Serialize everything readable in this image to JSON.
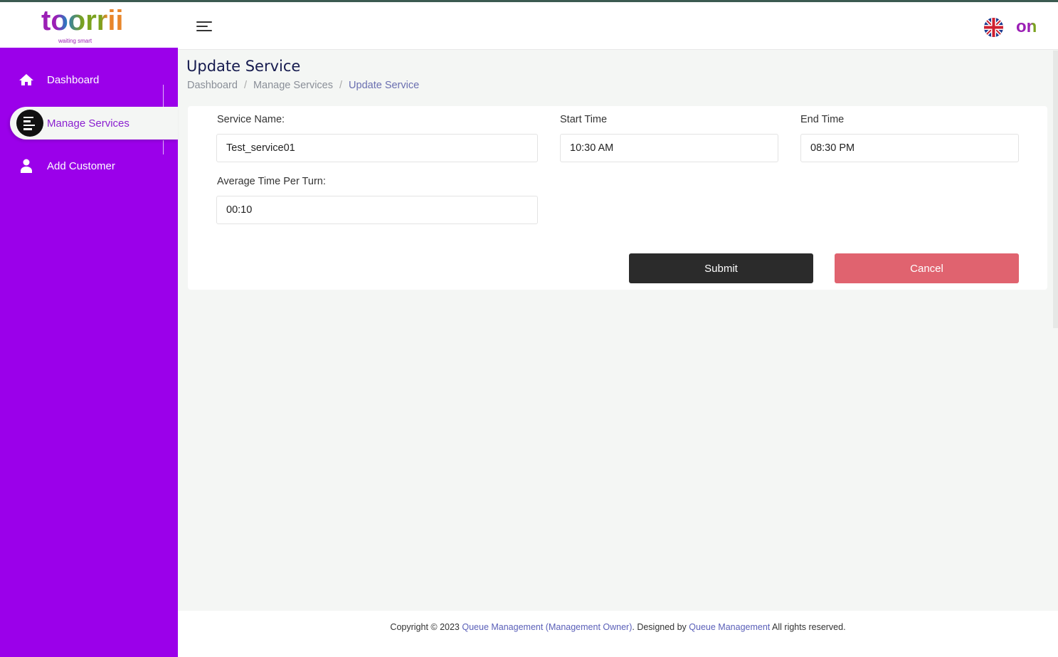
{
  "header": {
    "logo_text": "toorrii",
    "logo_tagline": "waiting smart",
    "menu_icon": "hamburger-icon",
    "language_icon": "uk-flag-icon",
    "user_avatar_text": "on"
  },
  "sidebar": {
    "items": [
      {
        "label": "Dashboard",
        "icon": "home-icon",
        "active": false
      },
      {
        "label": "Manage Services",
        "icon": "list-icon",
        "active": true
      },
      {
        "label": "Add Customer",
        "icon": "user-icon",
        "active": false
      }
    ]
  },
  "page": {
    "title": "Update Service",
    "breadcrumb": [
      "Dashboard",
      "Manage Services",
      "Update Service"
    ]
  },
  "form": {
    "service_name": {
      "label": "Service Name:",
      "value": "Test_service01"
    },
    "start_time": {
      "label": "Start Time",
      "value": "10:30 AM"
    },
    "end_time": {
      "label": "End Time",
      "value": "08:30 PM"
    },
    "avg_time": {
      "label": "Average Time Per Turn:",
      "value": "00:10"
    },
    "submit_label": "Submit",
    "cancel_label": "Cancel"
  },
  "footer": {
    "prefix": "Copyright © 2023 ",
    "link1": "Queue Management (Management Owner)",
    "middle": ". Designed by ",
    "link2": "Queue Management",
    "suffix": " All rights reserved."
  },
  "colors": {
    "sidebar": "#9b00ea",
    "submit": "#2b2b2b",
    "cancel": "#e0636f",
    "title": "#161b4f"
  }
}
